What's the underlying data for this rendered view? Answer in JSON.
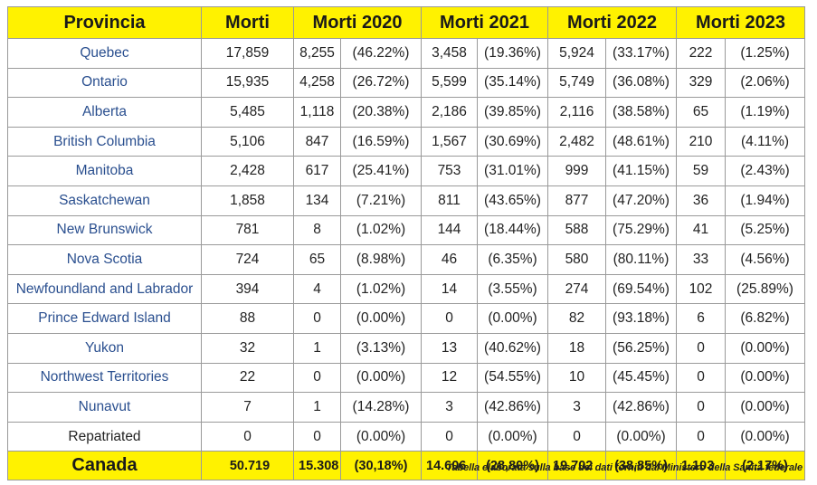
{
  "table": {
    "headers": [
      "Provincia",
      "Morti",
      "Morti 2020",
      "Morti 2021",
      "Morti 2022",
      "Morti 2023"
    ],
    "rows": [
      {
        "province": "Quebec",
        "deaths": "17,859",
        "y2020": "8,255",
        "p2020": "(46.22%)",
        "y2021": "3,458",
        "p2021": "(19.36%)",
        "y2022": "5,924",
        "p2022": "(33.17%)",
        "y2023": "222",
        "p2023": "(1.25%)"
      },
      {
        "province": "Ontario",
        "deaths": "15,935",
        "y2020": "4,258",
        "p2020": "(26.72%)",
        "y2021": "5,599",
        "p2021": "(35.14%)",
        "y2022": "5,749",
        "p2022": "(36.08%)",
        "y2023": "329",
        "p2023": "(2.06%)"
      },
      {
        "province": "Alberta",
        "deaths": "5,485",
        "y2020": "1,118",
        "p2020": "(20.38%)",
        "y2021": "2,186",
        "p2021": "(39.85%)",
        "y2022": "2,116",
        "p2022": "(38.58%)",
        "y2023": "65",
        "p2023": "(1.19%)"
      },
      {
        "province": "British Columbia",
        "deaths": "5,106",
        "y2020": "847",
        "p2020": "(16.59%)",
        "y2021": "1,567",
        "p2021": "(30.69%)",
        "y2022": "2,482",
        "p2022": "(48.61%)",
        "y2023": "210",
        "p2023": "(4.11%)"
      },
      {
        "province": "Manitoba",
        "deaths": "2,428",
        "y2020": "617",
        "p2020": "(25.41%)",
        "y2021": "753",
        "p2021": "(31.01%)",
        "y2022": "999",
        "p2022": "(41.15%)",
        "y2023": "59",
        "p2023": "(2.43%)"
      },
      {
        "province": "Saskatchewan",
        "deaths": "1,858",
        "y2020": "134",
        "p2020": "(7.21%)",
        "y2021": "811",
        "p2021": "(43.65%)",
        "y2022": "877",
        "p2022": "(47.20%)",
        "y2023": "36",
        "p2023": "(1.94%)"
      },
      {
        "province": "New Brunswick",
        "deaths": "781",
        "y2020": "8",
        "p2020": "(1.02%)",
        "y2021": "144",
        "p2021": "(18.44%)",
        "y2022": "588",
        "p2022": "(75.29%)",
        "y2023": "41",
        "p2023": "(5.25%)"
      },
      {
        "province": "Nova Scotia",
        "deaths": "724",
        "y2020": "65",
        "p2020": "(8.98%)",
        "y2021": "46",
        "p2021": "(6.35%)",
        "y2022": "580",
        "p2022": "(80.11%)",
        "y2023": "33",
        "p2023": "(4.56%)"
      },
      {
        "province": "Newfoundland and Labrador",
        "deaths": "394",
        "y2020": "4",
        "p2020": "(1.02%)",
        "y2021": "14",
        "p2021": "(3.55%)",
        "y2022": "274",
        "p2022": "(69.54%)",
        "y2023": "102",
        "p2023": "(25.89%)"
      },
      {
        "province": "Prince Edward Island",
        "deaths": "88",
        "y2020": "0",
        "p2020": "(0.00%)",
        "y2021": "0",
        "p2021": "(0.00%)",
        "y2022": "82",
        "p2022": "(93.18%)",
        "y2023": "6",
        "p2023": "(6.82%)"
      },
      {
        "province": "Yukon",
        "deaths": "32",
        "y2020": "1",
        "p2020": "(3.13%)",
        "y2021": "13",
        "p2021": "(40.62%)",
        "y2022": "18",
        "p2022": "(56.25%)",
        "y2023": "0",
        "p2023": "(0.00%)"
      },
      {
        "province": "Northwest Territories",
        "deaths": "22",
        "y2020": "0",
        "p2020": "(0.00%)",
        "y2021": "12",
        "p2021": "(54.55%)",
        "y2022": "10",
        "p2022": "(45.45%)",
        "y2023": "0",
        "p2023": "(0.00%)"
      },
      {
        "province": "Nunavut",
        "deaths": "7",
        "y2020": "1",
        "p2020": "(14.28%)",
        "y2021": "3",
        "p2021": "(42.86%)",
        "y2022": "3",
        "p2022": "(42.86%)",
        "y2023": "0",
        "p2023": "(0.00%)"
      },
      {
        "province": "Repatriated",
        "deaths": "0",
        "y2020": "0",
        "p2020": "(0.00%)",
        "y2021": "0",
        "p2021": "(0.00%)",
        "y2022": "0",
        "p2022": "(0.00%)",
        "y2023": "0",
        "p2023": "(0.00%)"
      }
    ],
    "total": {
      "province": "Canada",
      "deaths": "50.719",
      "y2020": "15.308",
      "p2020": "(30,18%)",
      "y2021": "14.606",
      "p2021": "(28,80%)",
      "y2022": "19.702",
      "p2022": "(38,85%)",
      "y2023": "1.103",
      "p2023": "(2.17%)"
    }
  },
  "caption": "Tabella elaborata sulla base dei dati forniti dal Ministero della Sanità federale",
  "colors": {
    "header_bg": "#fff200",
    "province_text": "#2a4f8f",
    "border": "#9a9a9a"
  }
}
